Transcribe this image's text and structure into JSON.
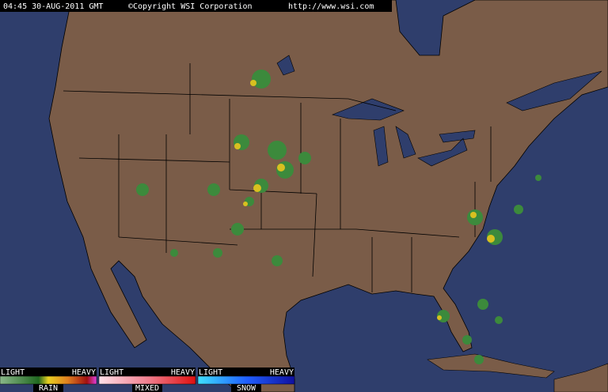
{
  "header": {
    "timestamp": "04:45 30-AUG-2011 GMT",
    "copyright": "©Copyright WSI Corporation",
    "url": "http://www.wsi.com"
  },
  "legend": [
    {
      "light": "LIGHT",
      "heavy": "HEAVY",
      "label": "RAIN"
    },
    {
      "light": "LIGHT",
      "heavy": "HEAVY",
      "label": "MIXED"
    },
    {
      "light": "LIGHT",
      "heavy": "HEAVY",
      "label": "SNOW"
    }
  ]
}
